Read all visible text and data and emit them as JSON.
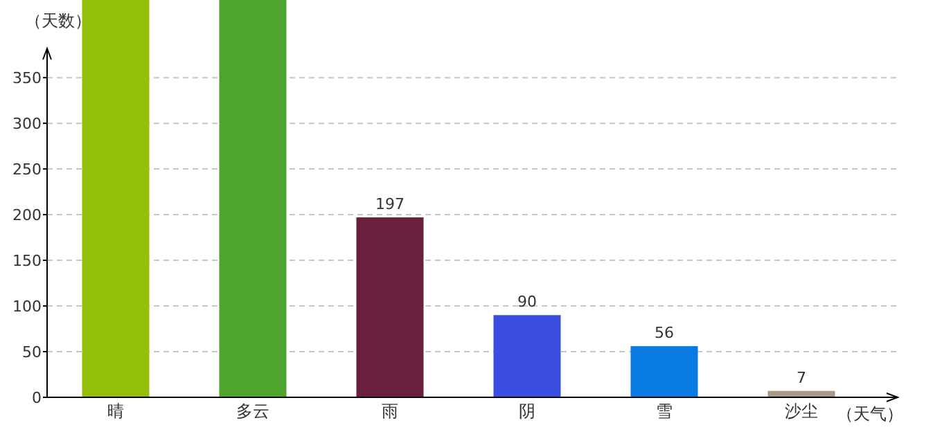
{
  "chart_data": {
    "type": "bar",
    "ylabel": "（天数）",
    "xlabel": "（天气）",
    "categories": [
      "晴",
      "多云",
      "雨",
      "阴",
      "雪",
      "沙尘"
    ],
    "values": [
      435,
      435,
      197,
      90,
      56,
      7
    ],
    "colors": [
      "#92c00a",
      "#4ea42e",
      "#6a1f3e",
      "#3a4fdf",
      "#0a7ae3",
      "#a89a88"
    ],
    "value_labels": [
      null,
      null,
      "197",
      "90",
      "56",
      "7"
    ],
    "ylim": [
      0,
      435
    ],
    "yticks": [
      0,
      50,
      100,
      150,
      200,
      250,
      300,
      350
    ],
    "grid": "y"
  }
}
